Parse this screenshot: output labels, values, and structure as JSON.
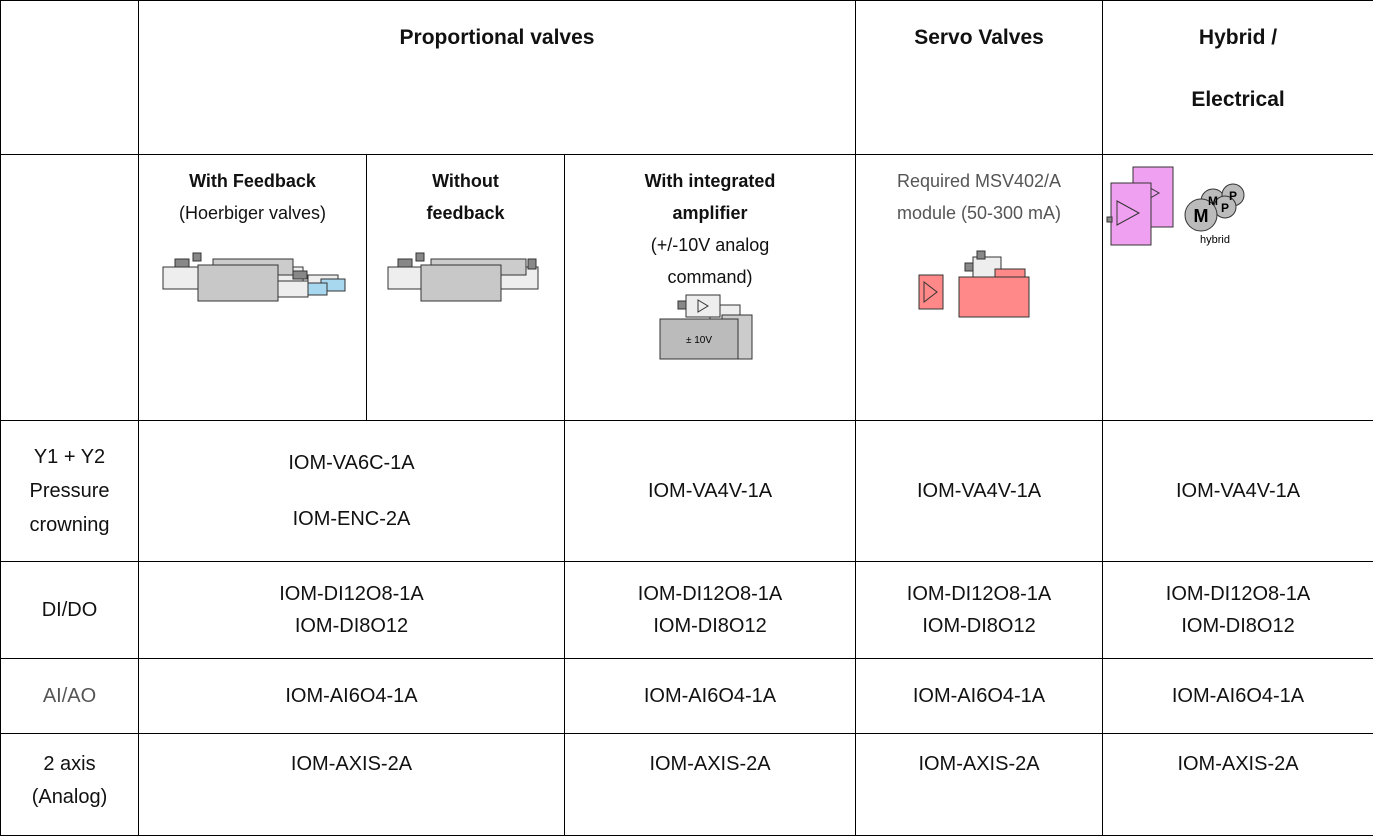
{
  "header": {
    "proportional": "Proportional valves",
    "servo": "Servo Valves",
    "hybrid": [
      "Hybrid /",
      "Electrical"
    ]
  },
  "subheader": {
    "feedback": {
      "title": "With Feedback",
      "note": "(Hoerbiger valves)"
    },
    "no_feedback": {
      "title": [
        "Without",
        "feedback"
      ]
    },
    "integrated": {
      "title": [
        "With integrated",
        "amplifier"
      ],
      "note": [
        "(+/-10V analog",
        "command)"
      ],
      "icon_label": "± 10V"
    },
    "servo": {
      "note": [
        "Required MSV402/A",
        "module (50-300 mA)"
      ]
    },
    "hybrid": {
      "icon_labels": [
        "M",
        "M",
        "P",
        "P",
        "hybrid"
      ]
    }
  },
  "rows": [
    {
      "label": [
        "Y1 + Y2",
        "Pressure",
        "crowning"
      ],
      "cells": [
        [
          "IOM-VA6C-1A",
          "IOM-ENC-2A"
        ],
        [
          "IOM-VA4V-1A"
        ],
        [
          "IOM-VA4V-1A"
        ],
        [
          "IOM-VA4V-1A"
        ]
      ]
    },
    {
      "label": [
        "DI/DO"
      ],
      "cells": [
        [
          "IOM-DI12O8-1A",
          "IOM-DI8O12"
        ],
        [
          "IOM-DI12O8-1A",
          "IOM-DI8O12"
        ],
        [
          "IOM-DI12O8-1A",
          "IOM-DI8O12"
        ],
        [
          "IOM-DI12O8-1A",
          "IOM-DI8O12"
        ]
      ]
    },
    {
      "label": [
        "AI/AO"
      ],
      "cells": [
        [
          "IOM-AI6O4-1A"
        ],
        [
          "IOM-AI6O4-1A"
        ],
        [
          "IOM-AI6O4-1A"
        ],
        [
          "IOM-AI6O4-1A"
        ]
      ]
    },
    {
      "label": [
        "2 axis",
        "(Analog)"
      ],
      "cells": [
        [
          "IOM-AXIS-2A"
        ],
        [
          "IOM-AXIS-2A"
        ],
        [
          "IOM-AXIS-2A"
        ],
        [
          "IOM-AXIS-2A"
        ]
      ]
    }
  ]
}
